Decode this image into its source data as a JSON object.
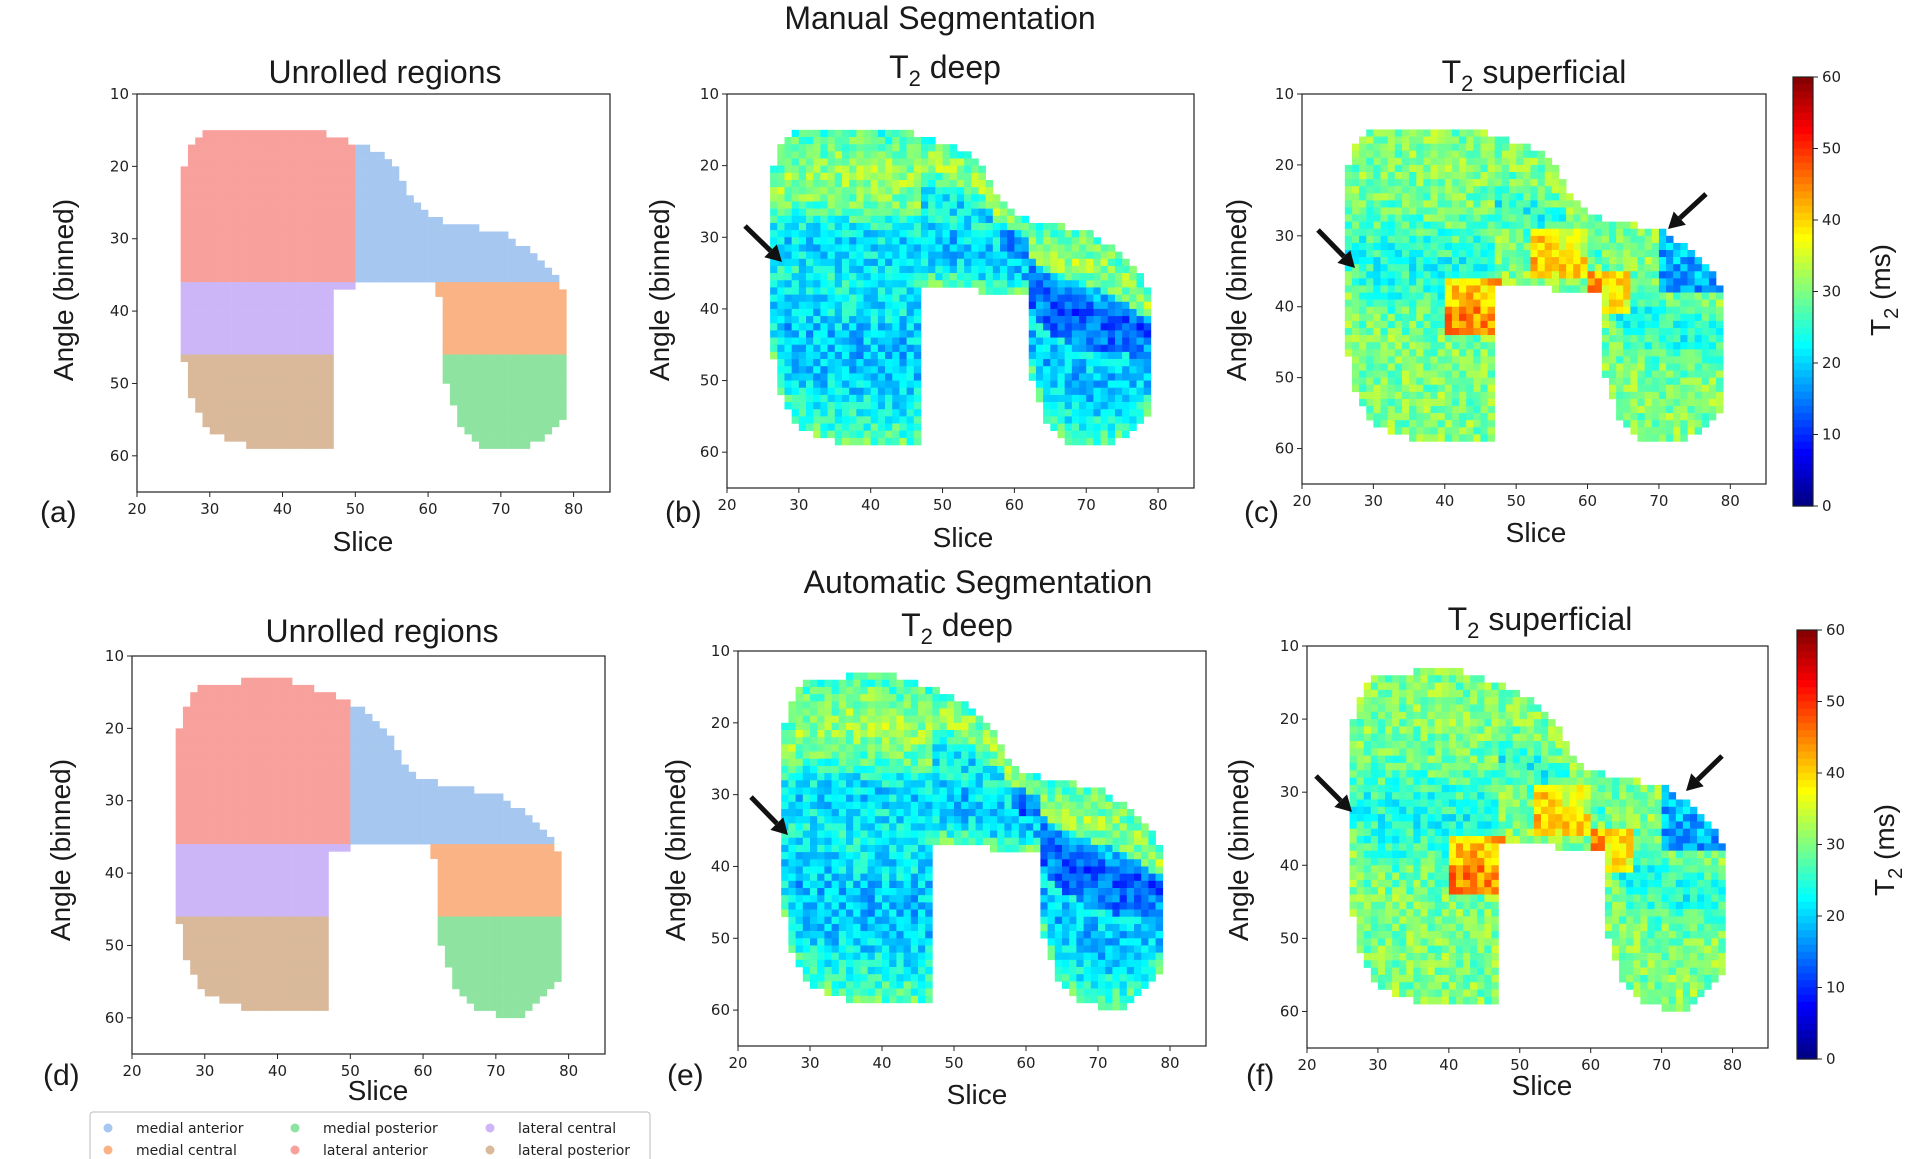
{
  "figure": {
    "section_titles": [
      "Manual Segmentation",
      "Automatic Segmentation"
    ]
  },
  "chart_data": [
    {
      "id": "a",
      "panel_label": "(a)",
      "type": "heatmap",
      "title": "Unrolled regions",
      "xlabel": "Slice",
      "ylabel": "Angle (binned)",
      "xlim": [
        20,
        85
      ],
      "ylim": [
        65,
        10
      ],
      "xticks": [
        20,
        30,
        40,
        50,
        60,
        70,
        80
      ],
      "yticks": [
        10,
        20,
        30,
        40,
        50,
        60
      ],
      "encoding": "categorical regions",
      "shape": "manual"
    },
    {
      "id": "b",
      "panel_label": "(b)",
      "type": "heatmap",
      "title": "T2 deep",
      "title_main": "T",
      "title_sub": "2",
      "title_rest": " deep",
      "xlabel": "Slice",
      "ylabel": "Angle (binned)",
      "xlim": [
        20,
        85
      ],
      "ylim": [
        65,
        10
      ],
      "xticks": [
        20,
        30,
        40,
        50,
        60,
        70,
        80
      ],
      "yticks": [
        10,
        20,
        30,
        40,
        50,
        60
      ],
      "encoding": "T2 (ms), colormap jet, 0–60",
      "layer": "deep",
      "shape": "manual"
    },
    {
      "id": "c",
      "panel_label": "(c)",
      "type": "heatmap",
      "title": "T2 superficial",
      "title_main": "T",
      "title_sub": "2",
      "title_rest": " superficial",
      "xlabel": "Slice",
      "ylabel": "Angle (binned)",
      "xlim": [
        20,
        85
      ],
      "ylim": [
        65,
        10
      ],
      "xticks": [
        20,
        30,
        40,
        50,
        60,
        70,
        80
      ],
      "yticks": [
        10,
        20,
        30,
        40,
        50,
        60
      ],
      "encoding": "T2 (ms), colormap jet, 0–60",
      "layer": "superficial",
      "shape": "manual",
      "colorbar": {
        "label_main": "T",
        "label_sub": "2",
        "label_rest": " (ms)",
        "ticks": [
          0,
          10,
          20,
          30,
          40,
          50,
          60
        ],
        "range": [
          0,
          60
        ]
      }
    },
    {
      "id": "d",
      "panel_label": "(d)",
      "type": "heatmap",
      "title": "Unrolled regions",
      "xlabel": "Slice",
      "ylabel": "Angle (binned)",
      "xlim": [
        20,
        85
      ],
      "ylim": [
        65,
        10
      ],
      "xticks": [
        20,
        30,
        40,
        50,
        60,
        70,
        80
      ],
      "yticks": [
        10,
        20,
        30,
        40,
        50,
        60
      ],
      "encoding": "categorical regions",
      "shape": "auto"
    },
    {
      "id": "e",
      "panel_label": "(e)",
      "type": "heatmap",
      "title": "T2 deep",
      "title_main": "T",
      "title_sub": "2",
      "title_rest": " deep",
      "xlabel": "Slice",
      "ylabel": "Angle (binned)",
      "xlim": [
        20,
        85
      ],
      "ylim": [
        65,
        10
      ],
      "xticks": [
        20,
        30,
        40,
        50,
        60,
        70,
        80
      ],
      "yticks": [
        10,
        20,
        30,
        40,
        50,
        60
      ],
      "encoding": "T2 (ms), colormap jet, 0–60",
      "layer": "deep",
      "shape": "auto"
    },
    {
      "id": "f",
      "panel_label": "(f)",
      "type": "heatmap",
      "title": "T2 superficial",
      "title_main": "T",
      "title_sub": "2",
      "title_rest": " superficial",
      "xlabel": "Slice",
      "ylabel": "Angle (binned)",
      "xlim": [
        20,
        85
      ],
      "ylim": [
        65,
        10
      ],
      "xticks": [
        20,
        30,
        40,
        50,
        60,
        70,
        80
      ],
      "yticks": [
        10,
        20,
        30,
        40,
        50,
        60
      ],
      "encoding": "T2 (ms), colormap jet, 0–60",
      "layer": "superficial",
      "shape": "auto",
      "colorbar": {
        "label_main": "T",
        "label_sub": "2",
        "label_rest": " (ms)",
        "ticks": [
          0,
          10,
          20,
          30,
          40,
          50,
          60
        ],
        "range": [
          0,
          60
        ]
      }
    }
  ],
  "regions": [
    {
      "name": "medial anterior",
      "color": "#a6c8f0"
    },
    {
      "name": "medial central",
      "color": "#f9b384"
    },
    {
      "name": "medial posterior",
      "color": "#8fe3a0"
    },
    {
      "name": "lateral anterior",
      "color": "#f8a09c"
    },
    {
      "name": "lateral central",
      "color": "#cdb6f7"
    },
    {
      "name": "lateral posterior",
      "color": "#d9b99a"
    }
  ],
  "legend": {
    "placement": "bottom-left",
    "columns": 3
  }
}
